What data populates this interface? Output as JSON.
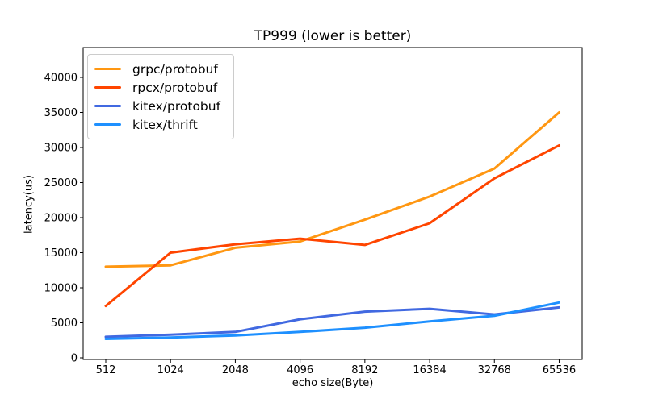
{
  "chart_data": {
    "type": "line",
    "title": "TP999 (lower is better)",
    "xlabel": "echo size(Byte)",
    "ylabel": "latency(us)",
    "x_tick_labels": [
      "512",
      "1024",
      "2048",
      "4096",
      "8192",
      "16384",
      "32768",
      "65536"
    ],
    "y_ticks": [
      0,
      5000,
      10000,
      15000,
      20000,
      25000,
      30000,
      35000,
      40000
    ],
    "ylim": [
      0,
      44000
    ],
    "grid": false,
    "legend_position": "upper left",
    "series": [
      {
        "name": "grpc/protobuf",
        "color": "#ff9712",
        "values": [
          13000,
          13200,
          15700,
          16600,
          19700,
          23000,
          27000,
          35000
        ]
      },
      {
        "name": "rpcx/protobuf",
        "color": "#ff4500",
        "values": [
          7400,
          15000,
          16200,
          17000,
          16100,
          19200,
          25600,
          30300
        ]
      },
      {
        "name": "kitex/protobuf",
        "color": "#4169e1",
        "values": [
          3000,
          3300,
          3700,
          5500,
          6600,
          7000,
          6200,
          7200
        ]
      },
      {
        "name": "kitex/thrift",
        "color": "#1e90ff",
        "values": [
          2700,
          2900,
          3200,
          3700,
          4300,
          5200,
          6000,
          7900
        ]
      }
    ]
  }
}
